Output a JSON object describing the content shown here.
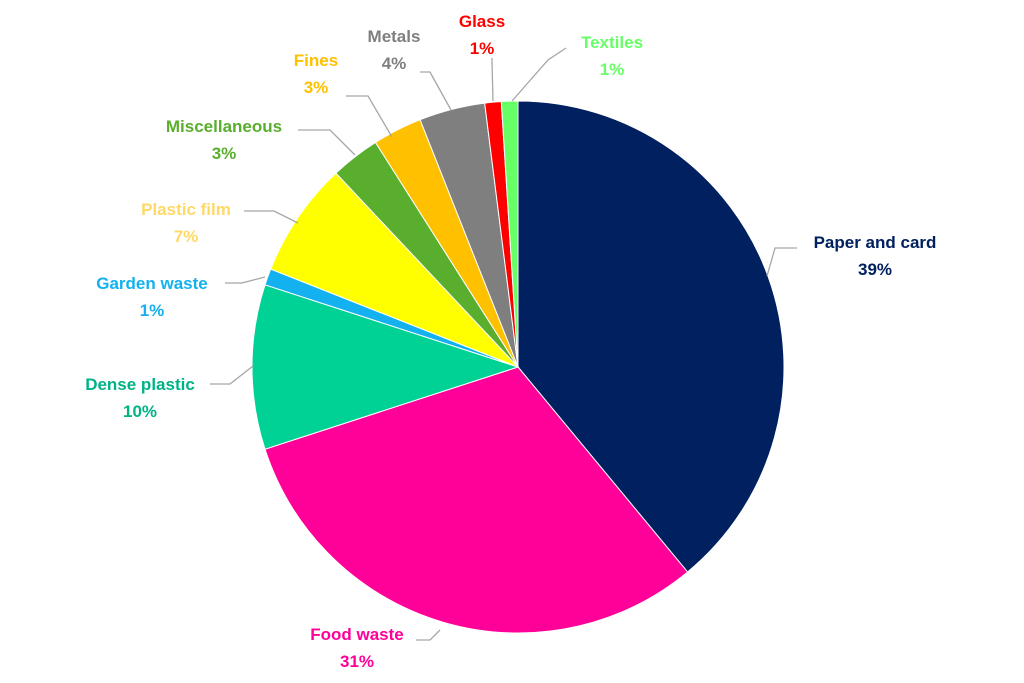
{
  "chart_data": {
    "type": "pie",
    "title": "",
    "start": "12 o'clock",
    "direction": "clockwise",
    "legend": "none",
    "slices": [
      {
        "name": "Paper and card",
        "label": "39%",
        "value": 39,
        "color": "#002060"
      },
      {
        "name": "Food waste",
        "label": "31%",
        "value": 31,
        "color": "#FF0099"
      },
      {
        "name": "Dense plastic",
        "label": "10%",
        "value": 10,
        "color": "#00D295"
      },
      {
        "name": "Garden waste",
        "label": "1%",
        "value": 1,
        "color": "#13B1F0"
      },
      {
        "name": "Plastic film",
        "label": "7%",
        "value": 7,
        "color": "#FFFF00"
      },
      {
        "name": "Miscellaneous",
        "label": "3%",
        "value": 3,
        "color": "#5AAE2E"
      },
      {
        "name": "Fines",
        "label": "3%",
        "value": 3,
        "color": "#FFC000"
      },
      {
        "name": "Metals",
        "label": "4%",
        "value": 4,
        "color": "#7F7F7F"
      },
      {
        "name": "Glass",
        "label": "1%",
        "value": 1,
        "color": "#FF0000"
      },
      {
        "name": "Textiles",
        "label": "1%",
        "value": 1,
        "color": "#66FF66"
      }
    ],
    "label_colors": {
      "Paper and card": "#002060",
      "Food waste": "#FF0099",
      "Dense plastic": "#00B386",
      "Garden waste": "#13B1F0",
      "Plastic film": "#FFD966",
      "Miscellaneous": "#5AAE2E",
      "Fines": "#FFC000",
      "Metals": "#7F7F7F",
      "Glass": "#FF0000",
      "Textiles": "#66FF66"
    }
  }
}
